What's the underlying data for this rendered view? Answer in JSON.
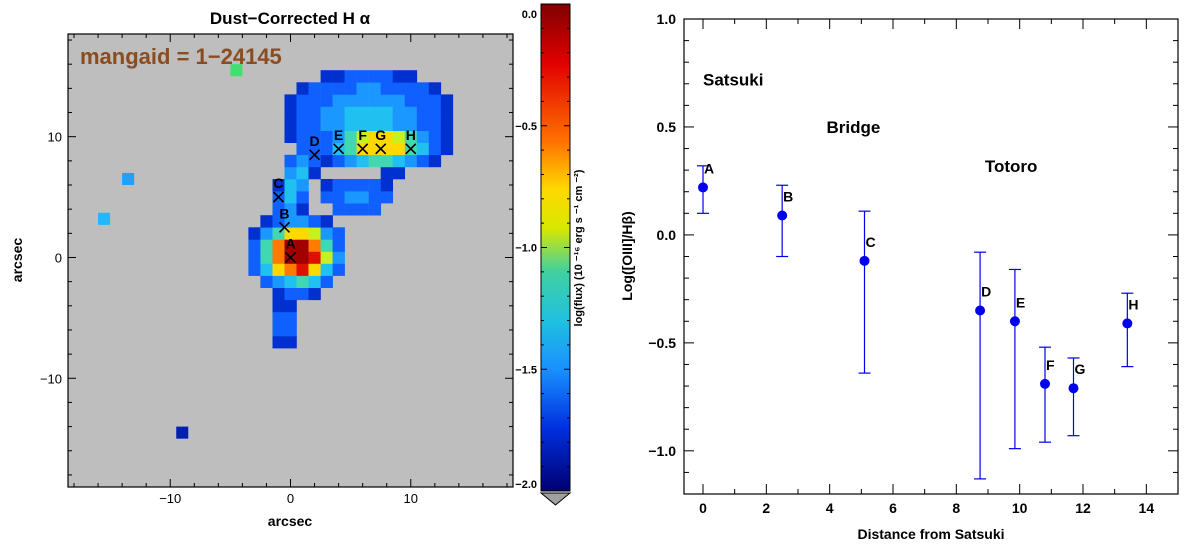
{
  "chart_data": [
    {
      "type": "heatmap",
      "title": "Dust−Corrected H α",
      "annotation": "mangaid = 1−24145",
      "xlabel": "arcsec",
      "ylabel": "arcsec",
      "xlim": [
        -18.5,
        18.5
      ],
      "ylim": [
        -19,
        18.5
      ],
      "xticks": [
        -10,
        0,
        10
      ],
      "xticklabels": [
        "−10",
        "0",
        "10"
      ],
      "yticks": [
        -10,
        0,
        10
      ],
      "yticklabels": [
        "−10",
        "0",
        "10"
      ],
      "background_color": "#bebebe",
      "points": [
        {
          "label": "A",
          "x": 0.0,
          "y": 0.0
        },
        {
          "label": "B",
          "x": -0.5,
          "y": 2.5
        },
        {
          "label": "C",
          "x": -1.0,
          "y": 5.0
        },
        {
          "label": "D",
          "x": 2.0,
          "y": 8.5
        },
        {
          "label": "E",
          "x": 4.0,
          "y": 9.0
        },
        {
          "label": "F",
          "x": 6.0,
          "y": 9.0
        },
        {
          "label": "G",
          "x": 7.5,
          "y": 9.0
        },
        {
          "label": "H",
          "x": 10.0,
          "y": 9.0
        }
      ],
      "colorbar": {
        "label": "log(flux) (10 ⁻¹⁶ erg s ⁻¹ cm ⁻²)",
        "range": [
          -2.0,
          0.0
        ],
        "ticks": [
          0.0,
          -0.5,
          -1.0,
          -1.5,
          -2.0
        ],
        "ticklabels": [
          "0.0",
          "−0.5",
          "−1.0",
          "−1.5",
          "−2.0"
        ]
      }
    },
    {
      "type": "scatter",
      "xlabel": "Distance from Satsuki",
      "ylabel": "Log([OIII]/Hβ)",
      "xlim": [
        -0.6,
        15
      ],
      "ylim": [
        -1.2,
        1.0
      ],
      "xticks": [
        0,
        2,
        4,
        6,
        8,
        10,
        12,
        14
      ],
      "xticklabels": [
        "0",
        "2",
        "4",
        "6",
        "8",
        "10",
        "12",
        "14"
      ],
      "yticks": [
        1.0,
        0.5,
        0.0,
        -0.5,
        -1.0
      ],
      "yticklabels": [
        "1.0",
        "0.5",
        "0.0",
        "−0.5",
        "−1.0"
      ],
      "region_labels": [
        {
          "text": "Satsuki",
          "x": 0.0,
          "y": 0.72
        },
        {
          "text": "Bridge",
          "x": 3.9,
          "y": 0.5
        },
        {
          "text": "Totoro",
          "x": 8.9,
          "y": 0.32
        }
      ],
      "points": [
        {
          "label": "A",
          "x": 0.0,
          "y": 0.22,
          "yerr_low": 0.1,
          "yerr_high": 0.32
        },
        {
          "label": "B",
          "x": 2.5,
          "y": 0.09,
          "yerr_low": -0.1,
          "yerr_high": 0.23
        },
        {
          "label": "C",
          "x": 5.1,
          "y": -0.12,
          "yerr_low": -0.64,
          "yerr_high": 0.11
        },
        {
          "label": "D",
          "x": 8.75,
          "y": -0.35,
          "yerr_low": -1.13,
          "yerr_high": -0.08
        },
        {
          "label": "E",
          "x": 9.85,
          "y": -0.4,
          "yerr_low": -0.99,
          "yerr_high": -0.16
        },
        {
          "label": "F",
          "x": 10.8,
          "y": -0.69,
          "yerr_low": -0.96,
          "yerr_high": -0.52
        },
        {
          "label": "G",
          "x": 11.7,
          "y": -0.71,
          "yerr_low": -0.93,
          "yerr_high": -0.57
        },
        {
          "label": "H",
          "x": 13.4,
          "y": -0.41,
          "yerr_low": -0.61,
          "yerr_high": -0.27
        }
      ],
      "marker_color": "#0000ee"
    }
  ]
}
